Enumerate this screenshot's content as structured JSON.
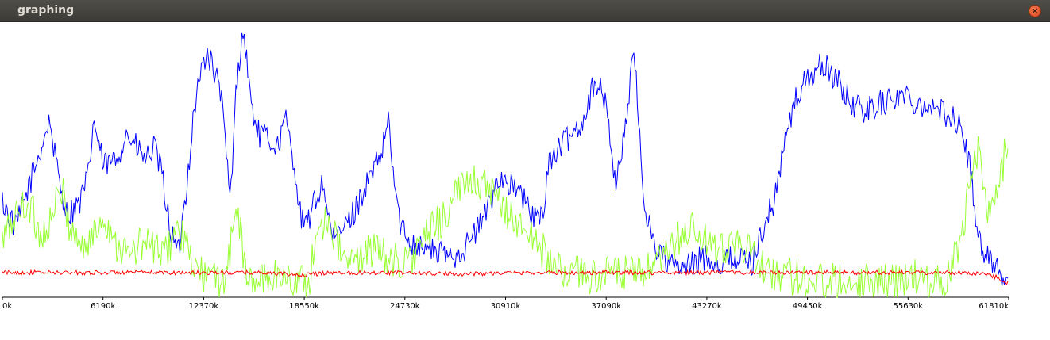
{
  "window": {
    "title": "graphing"
  },
  "chart_data": {
    "type": "line",
    "xlabel": "",
    "ylabel": "",
    "xlim": [
      0,
      61810
    ],
    "ylim": [
      0,
      1
    ],
    "grid": false,
    "x_ticks": [
      "0k",
      "6190k",
      "12370k",
      "18550k",
      "24730k",
      "30910k",
      "37090k",
      "43270k",
      "49450k",
      "55630k",
      "61810k"
    ],
    "series": [
      {
        "color": "#0000ff",
        "x": [
          0,
          800,
          1600,
          2400,
          2900,
          3400,
          4000,
          4800,
          5300,
          5600,
          6200,
          7000,
          7600,
          8200,
          8800,
          9300,
          9800,
          10300,
          10800,
          11300,
          11800,
          12300,
          12600,
          13000,
          13400,
          14000,
          14400,
          14800,
          15300,
          15700,
          16300,
          16900,
          17400,
          17900,
          18300,
          18600,
          19200,
          19700,
          20300,
          20900,
          21500,
          22100,
          22700,
          23300,
          23700,
          24100,
          24500,
          25200,
          26000,
          26800,
          27600,
          28400,
          29200,
          30000,
          30500,
          31000,
          31800,
          32500,
          33100,
          33600,
          34300,
          35000,
          35700,
          36400,
          37100,
          37700,
          38300,
          38800,
          39400,
          40000,
          40500,
          41000,
          41700,
          42400,
          43200,
          44000,
          45000,
          46000,
          46700,
          47400,
          48000,
          48600,
          49200,
          49800,
          50400,
          51200,
          52000,
          52800,
          53600,
          54400,
          55200,
          56000,
          56800,
          57600,
          58400,
          59000,
          59500,
          60000,
          60600,
          61200,
          61810
        ],
        "y": [
          0.35,
          0.25,
          0.4,
          0.55,
          0.65,
          0.45,
          0.3,
          0.35,
          0.45,
          0.65,
          0.48,
          0.5,
          0.6,
          0.55,
          0.5,
          0.55,
          0.45,
          0.25,
          0.15,
          0.4,
          0.7,
          0.85,
          0.9,
          0.82,
          0.76,
          0.35,
          0.8,
          0.98,
          0.7,
          0.6,
          0.58,
          0.55,
          0.65,
          0.5,
          0.3,
          0.25,
          0.35,
          0.42,
          0.2,
          0.25,
          0.3,
          0.38,
          0.45,
          0.52,
          0.65,
          0.4,
          0.25,
          0.2,
          0.18,
          0.16,
          0.15,
          0.18,
          0.25,
          0.35,
          0.45,
          0.42,
          0.38,
          0.3,
          0.28,
          0.5,
          0.55,
          0.6,
          0.65,
          0.8,
          0.7,
          0.4,
          0.65,
          0.9,
          0.35,
          0.2,
          0.15,
          0.12,
          0.1,
          0.12,
          0.15,
          0.12,
          0.15,
          0.12,
          0.25,
          0.35,
          0.55,
          0.7,
          0.78,
          0.82,
          0.85,
          0.8,
          0.72,
          0.68,
          0.7,
          0.72,
          0.74,
          0.72,
          0.7,
          0.68,
          0.66,
          0.6,
          0.45,
          0.2,
          0.15,
          0.1,
          0.05
        ]
      },
      {
        "color": "#99ff33",
        "x": [
          0,
          800,
          1600,
          2400,
          3000,
          3600,
          4200,
          5000,
          5600,
          6200,
          7000,
          7800,
          8600,
          9400,
          10000,
          10600,
          11200,
          11800,
          12400,
          13200,
          13800,
          14400,
          15000,
          15800,
          16600,
          17400,
          18200,
          18800,
          19400,
          20000,
          20800,
          21600,
          22400,
          23200,
          24000,
          24800,
          25600,
          26400,
          27200,
          28000,
          28800,
          29600,
          30400,
          31200,
          32000,
          32800,
          33400,
          34000,
          35000,
          36000,
          37000,
          38000,
          38600,
          39200,
          40000,
          40800,
          41600,
          42400,
          43200,
          44000,
          44800,
          45600,
          46400,
          47200,
          48000,
          49000,
          50000,
          51000,
          52000,
          53000,
          54000,
          55000,
          56000,
          57000,
          58000,
          58800,
          59400,
          60000,
          60600,
          61200,
          61810
        ],
        "y": [
          0.2,
          0.3,
          0.35,
          0.22,
          0.28,
          0.4,
          0.25,
          0.18,
          0.22,
          0.3,
          0.2,
          0.15,
          0.2,
          0.18,
          0.15,
          0.25,
          0.2,
          0.1,
          0.08,
          0.06,
          0.08,
          0.35,
          0.05,
          0.06,
          0.08,
          0.07,
          0.06,
          0.05,
          0.25,
          0.3,
          0.15,
          0.12,
          0.18,
          0.16,
          0.14,
          0.12,
          0.18,
          0.25,
          0.3,
          0.38,
          0.45,
          0.4,
          0.35,
          0.3,
          0.25,
          0.2,
          0.15,
          0.1,
          0.09,
          0.08,
          0.08,
          0.09,
          0.08,
          0.09,
          0.1,
          0.15,
          0.22,
          0.25,
          0.2,
          0.15,
          0.22,
          0.18,
          0.12,
          0.1,
          0.08,
          0.07,
          0.06,
          0.06,
          0.07,
          0.06,
          0.06,
          0.06,
          0.07,
          0.06,
          0.07,
          0.2,
          0.4,
          0.55,
          0.3,
          0.4,
          0.6
        ]
      },
      {
        "color": "#ff0000",
        "x": [
          0,
          4000,
          8000,
          12000,
          16000,
          18500,
          20000,
          24000,
          28000,
          32000,
          36000,
          40000,
          44000,
          48000,
          52000,
          56000,
          59000,
          60500,
          61200,
          61810
        ],
        "y": [
          0.09,
          0.09,
          0.09,
          0.09,
          0.09,
          0.08,
          0.09,
          0.09,
          0.085,
          0.09,
          0.09,
          0.09,
          0.09,
          0.09,
          0.09,
          0.09,
          0.09,
          0.085,
          0.07,
          0.05
        ]
      }
    ]
  }
}
